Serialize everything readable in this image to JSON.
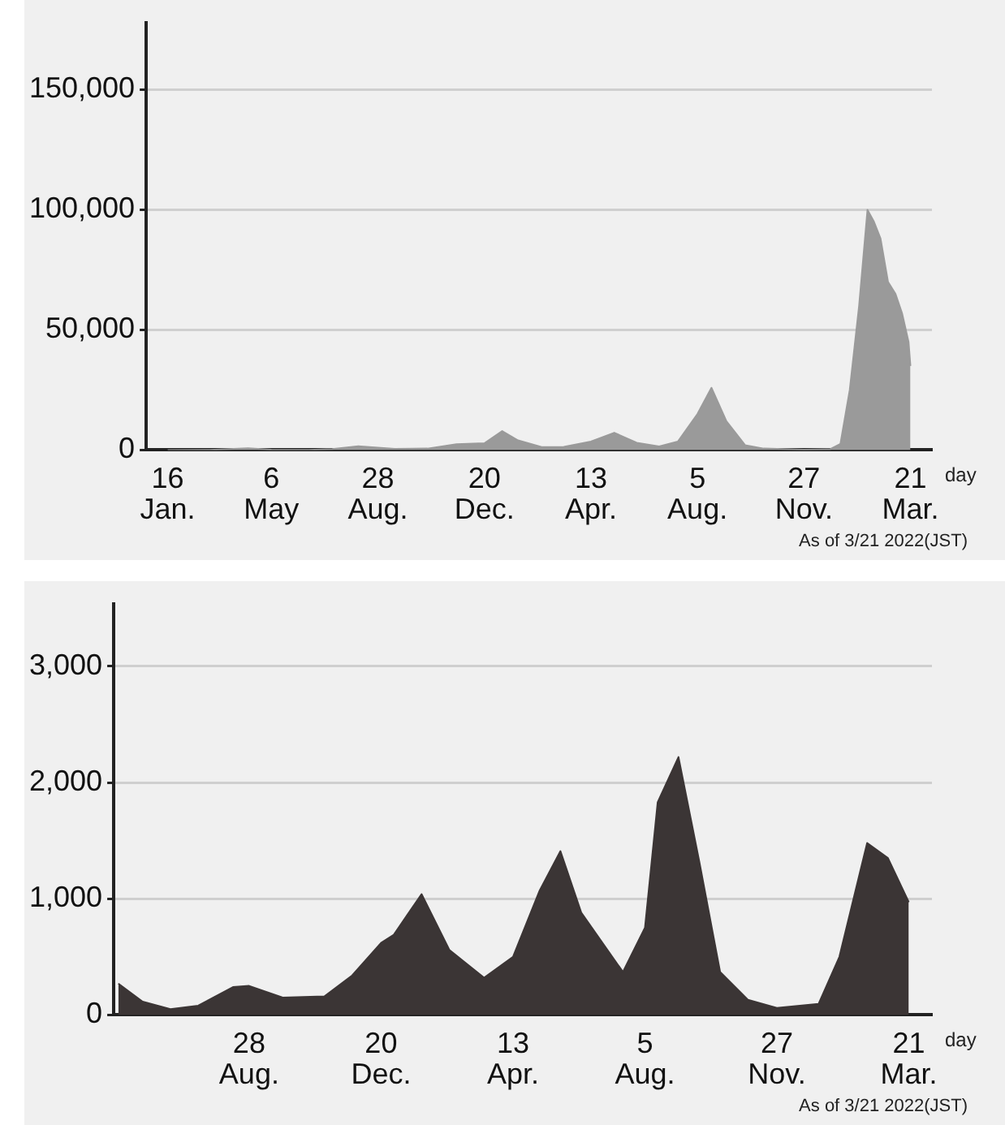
{
  "chart_data": [
    {
      "type": "area",
      "xlabel": "day",
      "annotations": [
        "As of 3/21 2022(JST)"
      ],
      "grid": "y",
      "legend": false,
      "marker": "none",
      "x": [
        "2020-01-16",
        "2020-03-01",
        "2020-04-11",
        "2020-05-06",
        "2020-06-15",
        "2020-07-10",
        "2020-08-07",
        "2020-09-15",
        "2020-10-20",
        "2020-11-20",
        "2020-12-20",
        "2021-01-08",
        "2021-01-25",
        "2021-02-20",
        "2021-03-15",
        "2021-04-13",
        "2021-05-08",
        "2021-06-01",
        "2021-06-25",
        "2021-07-15",
        "2021-08-05",
        "2021-08-20",
        "2021-09-05",
        "2021-09-25",
        "2021-10-15",
        "2021-11-27",
        "2021-12-25",
        "2022-01-05",
        "2022-01-15",
        "2022-01-25",
        "2022-02-03",
        "2022-02-10",
        "2022-02-17",
        "2022-02-25",
        "2022-03-05",
        "2022-03-12",
        "2022-03-19",
        "2022-03-21"
      ],
      "series": [
        {
          "color": "#9a9a9a",
          "values": [
            0,
            20,
            700,
            100,
            50,
            400,
            1600,
            500,
            600,
            2400,
            2800,
            7900,
            4000,
            1200,
            1300,
            3500,
            7200,
            3000,
            1500,
            3500,
            15000,
            25900,
            12000,
            2000,
            600,
            150,
            300,
            2500,
            25000,
            60000,
            100000,
            95000,
            88000,
            70000,
            65000,
            57000,
            45000,
            35000
          ]
        }
      ],
      "xlim": [
        "2019-12-24",
        "2022-04-13"
      ],
      "xticks": [
        {
          "value": "2020-01-16",
          "label": "16\nJan."
        },
        {
          "value": "2020-05-06",
          "label": "6\nMay"
        },
        {
          "value": "2020-08-28",
          "label": "28\nAug."
        },
        {
          "value": "2020-12-20",
          "label": "20\nDec."
        },
        {
          "value": "2021-04-13",
          "label": "13\nApr."
        },
        {
          "value": "2021-08-05",
          "label": "5\nAug."
        },
        {
          "value": "2021-11-27",
          "label": "27\nNov."
        },
        {
          "value": "2022-03-21",
          "label": "21\nMar."
        }
      ],
      "ylim": [
        0,
        178000
      ],
      "yticks": [
        {
          "value": 0,
          "label": "0"
        },
        {
          "value": 50000,
          "label": "50,000"
        },
        {
          "value": 100000,
          "label": "100,000"
        },
        {
          "value": 150000,
          "label": "150,000"
        }
      ]
    },
    {
      "type": "area",
      "xlabel": "day",
      "annotations": [
        "As of 3/21 2022(JST)"
      ],
      "grid": "y",
      "legend": false,
      "marker": "none",
      "x": [
        "2020-05-07",
        "2020-05-28",
        "2020-06-21",
        "2020-07-15",
        "2020-08-14",
        "2020-08-28",
        "2020-09-26",
        "2020-11-01",
        "2020-11-25",
        "2020-12-20",
        "2020-12-31",
        "2021-01-24",
        "2021-02-17",
        "2021-03-19",
        "2021-04-13",
        "2021-05-06",
        "2021-05-24",
        "2021-06-11",
        "2021-07-17",
        "2021-08-05",
        "2021-08-16",
        "2021-09-03",
        "2021-09-21",
        "2021-10-09",
        "2021-11-02",
        "2021-11-27",
        "2022-01-02",
        "2022-01-20",
        "2022-02-13",
        "2022-03-03",
        "2022-03-21"
      ],
      "series": [
        {
          "color": "#3b3535",
          "values": [
            270,
            115,
            50,
            80,
            240,
            250,
            150,
            160,
            340,
            620,
            690,
            1040,
            560,
            320,
            500,
            1070,
            1410,
            880,
            370,
            750,
            1830,
            2220,
            1320,
            370,
            130,
            60,
            95,
            500,
            1480,
            1350,
            970
          ]
        }
      ],
      "xlim": [
        "2020-05-03",
        "2022-04-10"
      ],
      "xticks": [
        {
          "value": "2020-08-28",
          "label": "28\nAug."
        },
        {
          "value": "2020-12-20",
          "label": "20\nDec."
        },
        {
          "value": "2021-04-13",
          "label": "13\nApr."
        },
        {
          "value": "2021-08-05",
          "label": "5\nAug."
        },
        {
          "value": "2021-11-27",
          "label": "27\nNov."
        },
        {
          "value": "2022-03-21",
          "label": "21\nMar."
        }
      ],
      "ylim": [
        0,
        3540
      ],
      "yticks": [
        {
          "value": 0,
          "label": "0"
        },
        {
          "value": 1000,
          "label": "1,000"
        },
        {
          "value": 2000,
          "label": "2,000"
        },
        {
          "value": 3000,
          "label": "3,000"
        }
      ]
    }
  ]
}
